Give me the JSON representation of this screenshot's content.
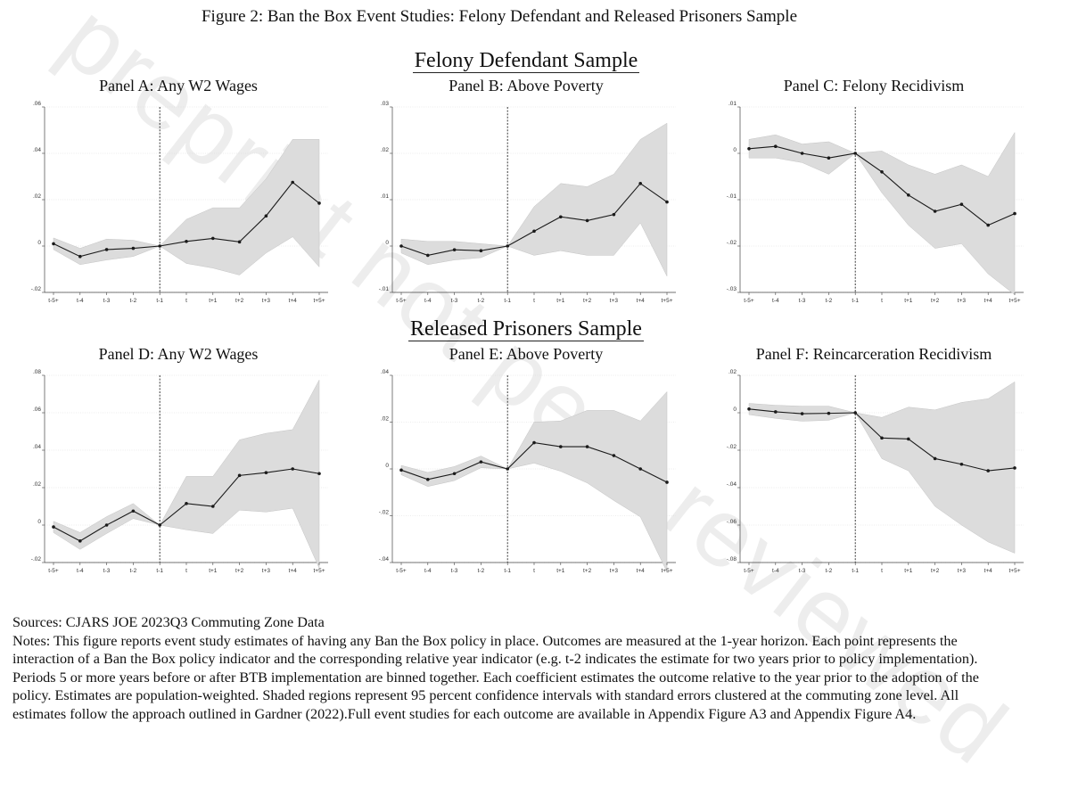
{
  "figure_title": "Figure 2: Ban the Box Event Studies: Felony Defendant and Released Prisoners Sample",
  "samples": {
    "felony": "Felony Defendant Sample",
    "released": "Released Prisoners Sample"
  },
  "panels": {
    "a": "Panel A: Any W2 Wages",
    "b": "Panel B: Above Poverty",
    "c": "Panel C: Felony Recidivism",
    "d": "Panel D: Any W2 Wages",
    "e": "Panel E: Above Poverty",
    "f": "Panel F: Reincarceration Recidivism"
  },
  "notes": {
    "sources": "Sources: CJARS JOE 2023Q3 Commuting Zone Data",
    "text": "Notes: This figure reports event study estimates of having any Ban the Box policy in place. Outcomes are measured at the 1-year horizon. Each point represents the interaction of a Ban the Box policy indicator and the corresponding relative year indicator (e.g. t-2 indicates the estimate for two years prior to policy implementation). Periods 5 or more years before or after BTB implementation are binned together. Each coefficient estimates the outcome relative to the year prior to the adoption of the policy. Estimates are population-weighted. Shaded regions represent 95 percent confidence intervals with standard errors clustered at the commuting zone level. All estimates follow the approach outlined in Gardner (2022).Full event studies for each outcome are available in Appendix Figure A3 and Appendix Figure A4."
  },
  "watermark": "preprint not peer reviewed",
  "colors": {
    "ci_fill": "#dcdcdc",
    "line": "#1a1a1a",
    "grid": "#d9d9d9"
  },
  "chart_data": [
    {
      "type": "line",
      "panel": "Panel A: Any W2 Wages",
      "categories": [
        "t-5+",
        "t-4",
        "t-3",
        "t-2",
        "t-1",
        "t",
        "t+1",
        "t+2",
        "t+3",
        "t+4",
        "t+5+"
      ],
      "values": [
        0.001,
        -0.0045,
        -0.0015,
        -0.001,
        0,
        0.002,
        0.0033,
        0.0018,
        0.013,
        0.0275,
        0.0185
      ],
      "ci_lower": [
        -0.0015,
        -0.008,
        -0.006,
        -0.0045,
        0,
        -0.0075,
        -0.0095,
        -0.0125,
        -0.003,
        0.004,
        -0.009
      ],
      "ci_upper": [
        0.0035,
        -0.001,
        0.003,
        0.0025,
        0,
        0.0115,
        0.0165,
        0.0165,
        0.029,
        0.046,
        0.046
      ],
      "ylim": [
        -0.02,
        0.06
      ],
      "yticks": [
        -0.02,
        0,
        0.02,
        0.04,
        0.06
      ],
      "ytick_labels": [
        "-.02",
        "0",
        ".02",
        ".04",
        ".06"
      ],
      "event_line": "t-1",
      "grid": true
    },
    {
      "type": "line",
      "panel": "Panel B: Above Poverty",
      "categories": [
        "t-5+",
        "t-4",
        "t-3",
        "t-2",
        "t-1",
        "t",
        "t+1",
        "t+2",
        "t+3",
        "t+4",
        "t+5+"
      ],
      "values": [
        0,
        -0.002,
        -0.0008,
        -0.001,
        0,
        0.0032,
        0.0063,
        0.0055,
        0.0068,
        0.0135,
        0.0095
      ],
      "ci_lower": [
        -0.0015,
        -0.004,
        -0.003,
        -0.0025,
        0,
        -0.002,
        -0.001,
        -0.002,
        -0.002,
        0.005,
        -0.0065
      ],
      "ci_upper": [
        0.0015,
        0.001,
        0.001,
        0.0005,
        0,
        0.0085,
        0.0135,
        0.0128,
        0.0155,
        0.023,
        0.0265
      ],
      "ylim": [
        -0.01,
        0.03
      ],
      "yticks": [
        -0.01,
        0,
        0.01,
        0.02,
        0.03
      ],
      "ytick_labels": [
        "-.01",
        "0",
        ".01",
        ".02",
        ".03"
      ],
      "event_line": "t-1",
      "grid": true
    },
    {
      "type": "line",
      "panel": "Panel C: Felony Recidivism",
      "categories": [
        "t-5+",
        "t-4",
        "t-3",
        "t-2",
        "t-1",
        "t",
        "t+1",
        "t+2",
        "t+3",
        "t+4",
        "t+5+"
      ],
      "values": [
        0.001,
        0.0015,
        0,
        -0.001,
        0,
        -0.004,
        -0.009,
        -0.0125,
        -0.011,
        -0.0155,
        -0.013
      ],
      "ci_lower": [
        -0.001,
        -0.001,
        -0.002,
        -0.0045,
        0,
        -0.0085,
        -0.0155,
        -0.0205,
        -0.0195,
        -0.026,
        -0.0305
      ],
      "ci_upper": [
        0.003,
        0.004,
        0.002,
        0.0025,
        0,
        0.0005,
        -0.0025,
        -0.0045,
        -0.0025,
        -0.005,
        0.0045
      ],
      "ylim": [
        -0.03,
        0.01
      ],
      "yticks": [
        -0.03,
        -0.02,
        -0.01,
        0,
        0.01
      ],
      "ytick_labels": [
        "-.03",
        "-.02",
        "-.01",
        "0",
        ".01"
      ],
      "event_line": "t-1",
      "grid": true
    },
    {
      "type": "line",
      "panel": "Panel D: Any W2 Wages",
      "categories": [
        "t-5+",
        "t-4",
        "t-3",
        "t-2",
        "t-1",
        "t",
        "t+1",
        "t+2",
        "t+3",
        "t+4",
        "t+5+"
      ],
      "values": [
        -0.001,
        -0.0085,
        0,
        0.0075,
        0,
        0.0115,
        0.01,
        0.0265,
        0.028,
        0.03,
        0.0275
      ],
      "ci_lower": [
        -0.004,
        -0.013,
        -0.0045,
        0.0035,
        0,
        -0.0025,
        -0.0045,
        0.008,
        0.007,
        0.009,
        -0.023
      ],
      "ci_upper": [
        0.002,
        -0.004,
        0.0045,
        0.0115,
        0,
        0.026,
        0.026,
        0.0455,
        0.049,
        0.051,
        0.0775
      ],
      "ylim": [
        -0.02,
        0.08
      ],
      "yticks": [
        -0.02,
        0,
        0.02,
        0.04,
        0.06,
        0.08
      ],
      "ytick_labels": [
        "-.02",
        "0",
        ".02",
        ".04",
        ".06",
        ".08"
      ],
      "event_line": "t-1",
      "grid": true
    },
    {
      "type": "line",
      "panel": "Panel E: Above Poverty",
      "categories": [
        "t-5+",
        "t-4",
        "t-3",
        "t-2",
        "t-1",
        "t",
        "t+1",
        "t+2",
        "t+3",
        "t+4",
        "t+5+"
      ],
      "values": [
        -0.0005,
        -0.0045,
        -0.002,
        0.003,
        0,
        0.0112,
        0.0095,
        0.0095,
        0.0057,
        0,
        -0.0057
      ],
      "ci_lower": [
        -0.0025,
        -0.0075,
        -0.005,
        0.0005,
        0,
        0.0025,
        -0.001,
        -0.006,
        -0.0135,
        -0.0205,
        -0.044
      ],
      "ci_upper": [
        0.0015,
        -0.0015,
        0.001,
        0.0055,
        0,
        0.02,
        0.0205,
        0.025,
        0.025,
        0.0205,
        0.033
      ],
      "ylim": [
        -0.04,
        0.04
      ],
      "yticks": [
        -0.04,
        -0.02,
        0,
        0.02,
        0.04
      ],
      "ytick_labels": [
        "-.04",
        "-.02",
        "0",
        ".02",
        ".04"
      ],
      "event_line": "t-1",
      "grid": true
    },
    {
      "type": "line",
      "panel": "Panel F: Reincarceration Recidivism",
      "categories": [
        "t-5+",
        "t-4",
        "t-3",
        "t-2",
        "t-1",
        "t",
        "t+1",
        "t+2",
        "t+3",
        "t+4",
        "t+5+"
      ],
      "values": [
        0.002,
        0.0005,
        -0.0005,
        -0.0003,
        0,
        -0.0135,
        -0.014,
        -0.0245,
        -0.0275,
        -0.031,
        -0.0295
      ],
      "ci_lower": [
        -0.001,
        -0.003,
        -0.0045,
        -0.004,
        0,
        -0.0245,
        -0.031,
        -0.05,
        -0.06,
        -0.069,
        -0.075
      ],
      "ci_upper": [
        0.005,
        0.004,
        0.0035,
        0.0035,
        0,
        -0.0025,
        0.003,
        0.0015,
        0.0055,
        0.0075,
        0.0165
      ],
      "ylim": [
        -0.08,
        0.02
      ],
      "yticks": [
        -0.08,
        -0.06,
        -0.04,
        -0.02,
        0,
        0.02
      ],
      "ytick_labels": [
        "-.08",
        "-.06",
        "-.04",
        "-.02",
        "0",
        ".02"
      ],
      "event_line": "t-1",
      "grid": true
    }
  ]
}
